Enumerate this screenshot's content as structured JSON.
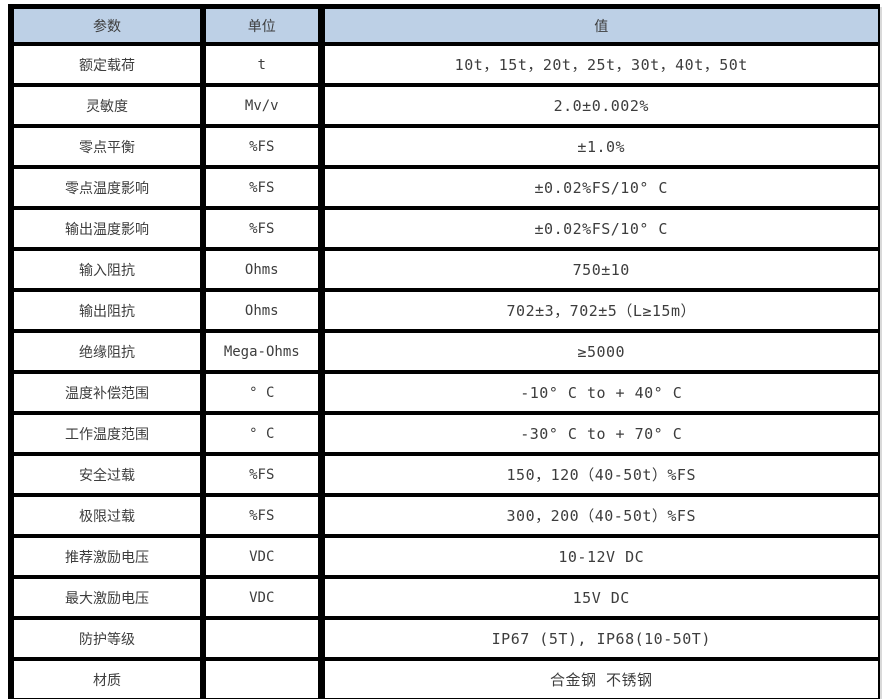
{
  "colors": {
    "header_background": "#bdd0e6",
    "grid_border": "#000000",
    "text": "#3d3d3d",
    "row_background": "#ffffff"
  },
  "table": {
    "headers": [
      "参数",
      "单位",
      "值"
    ],
    "rows": [
      {
        "param": "额定载荷",
        "unit": "t",
        "value": "10t，15t，20t，25t，30t，40t，50t"
      },
      {
        "param": "灵敏度",
        "unit": "Mv/v",
        "value": "2.0±0.002%"
      },
      {
        "param": "零点平衡",
        "unit": "%FS",
        "value": "±1.0%"
      },
      {
        "param": "零点温度影响",
        "unit": "%FS",
        "value": "±0.02%FS/10° C"
      },
      {
        "param": "输出温度影响",
        "unit": "%FS",
        "value": "±0.02%FS/10° C"
      },
      {
        "param": "输入阻抗",
        "unit": "Ohms",
        "value": "750±10"
      },
      {
        "param": "输出阻抗",
        "unit": "Ohms",
        "value": "702±3，702±5（L≥15m）"
      },
      {
        "param": "绝缘阻抗",
        "unit": "Mega-Ohms",
        "value": "≥5000"
      },
      {
        "param": "温度补偿范围",
        "unit": "° C",
        "value": "-10° C to + 40° C"
      },
      {
        "param": "工作温度范围",
        "unit": "° C",
        "value": "-30° C to + 70° C"
      },
      {
        "param": "安全过载",
        "unit": "%FS",
        "value": "150，120（40-50t）%FS"
      },
      {
        "param": "极限过载",
        "unit": "%FS",
        "value": "300，200（40-50t）%FS"
      },
      {
        "param": "推荐激励电压",
        "unit": "VDC",
        "value": "10-12V DC"
      },
      {
        "param": "最大激励电压",
        "unit": "VDC",
        "value": "15V DC"
      },
      {
        "param": "防护等级",
        "unit": "",
        "value": "IP67 (5T), IP68(10-50T)"
      },
      {
        "param": "材质",
        "unit": "",
        "value": "合金钢 不锈钢"
      }
    ]
  }
}
